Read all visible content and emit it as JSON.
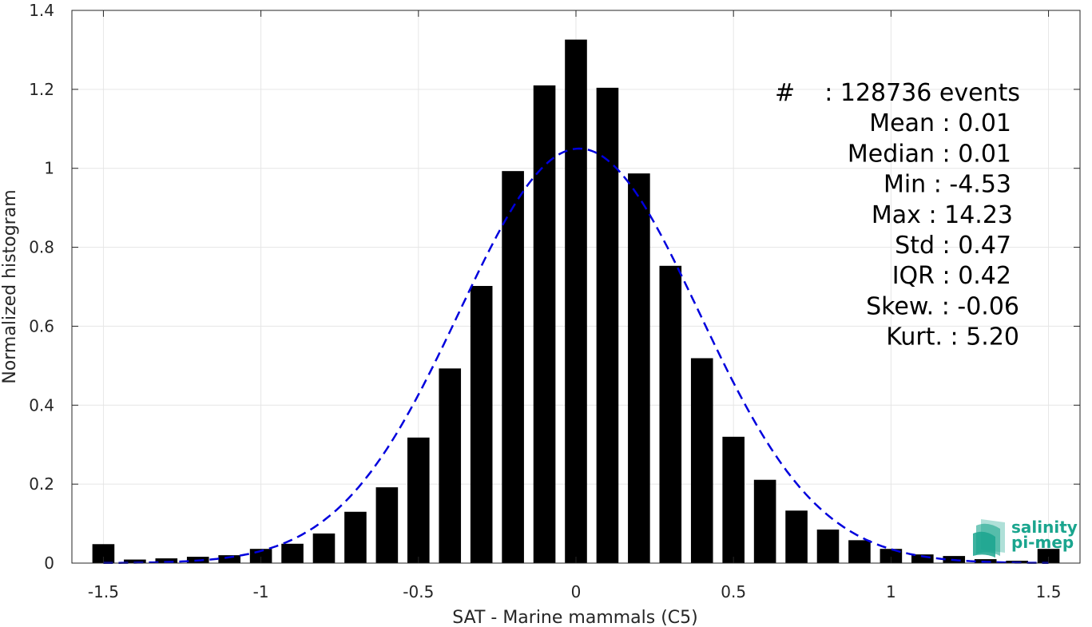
{
  "chart_data": {
    "type": "bar",
    "xlabel": "SAT - Marine mammals (C5)",
    "ylabel": "Normalized histogram",
    "xlim": [
      -1.6,
      1.6
    ],
    "ylim": [
      0,
      1.4
    ],
    "xticks": [
      -1.5,
      -1,
      -0.5,
      0,
      0.5,
      1,
      1.5
    ],
    "xtick_labels": [
      "-1.5",
      "-1",
      "-0.5",
      "0",
      "0.5",
      "1",
      "1.5"
    ],
    "yticks": [
      0,
      0.2,
      0.4,
      0.6,
      0.8,
      1,
      1.2,
      1.4
    ],
    "ytick_labels": [
      "0",
      "0.2",
      "0.4",
      "0.6",
      "0.8",
      "1",
      "1.2",
      "1.4"
    ],
    "grid": true,
    "bar_width": 0.07,
    "bar_color": "#000000",
    "x": [
      -1.5,
      -1.4,
      -1.3,
      -1.2,
      -1.1,
      -1.0,
      -0.9,
      -0.8,
      -0.7,
      -0.6,
      -0.5,
      -0.4,
      -0.3,
      -0.2,
      -0.1,
      0.0,
      0.1,
      0.2,
      0.3,
      0.4,
      0.5,
      0.6,
      0.7,
      0.8,
      0.9,
      1.0,
      1.1,
      1.2,
      1.3,
      1.4,
      1.5
    ],
    "values": [
      0.048,
      0.009,
      0.012,
      0.016,
      0.02,
      0.036,
      0.049,
      0.075,
      0.13,
      0.192,
      0.318,
      0.493,
      0.702,
      0.993,
      1.21,
      1.326,
      1.204,
      0.987,
      0.753,
      0.519,
      0.32,
      0.211,
      0.133,
      0.085,
      0.058,
      0.036,
      0.022,
      0.018,
      0.01,
      0.006,
      0.036
    ],
    "fit": {
      "type": "gaussian",
      "mean": 0.01,
      "std": 0.38,
      "peak": 1.05,
      "color": "#0000dd",
      "style": "dashed"
    },
    "stats": [
      {
        "label": "#",
        "value": ": 128736 events"
      },
      {
        "label": "Mean",
        "value": ": 0.01"
      },
      {
        "label": "Median",
        "value": ": 0.01"
      },
      {
        "label": "Min",
        "value": ": -4.53"
      },
      {
        "label": "Max",
        "value": ": 14.23"
      },
      {
        "label": "Std",
        "value": ": 0.47"
      },
      {
        "label": "IQR",
        "value": ": 0.42"
      },
      {
        "label": "Skew.",
        "value": ": -0.06"
      },
      {
        "label": "Kurt.",
        "value": ": 5.20"
      }
    ]
  },
  "logo": {
    "line1": "salinity",
    "line2": "pi-mep",
    "color": "#1aa58e"
  }
}
